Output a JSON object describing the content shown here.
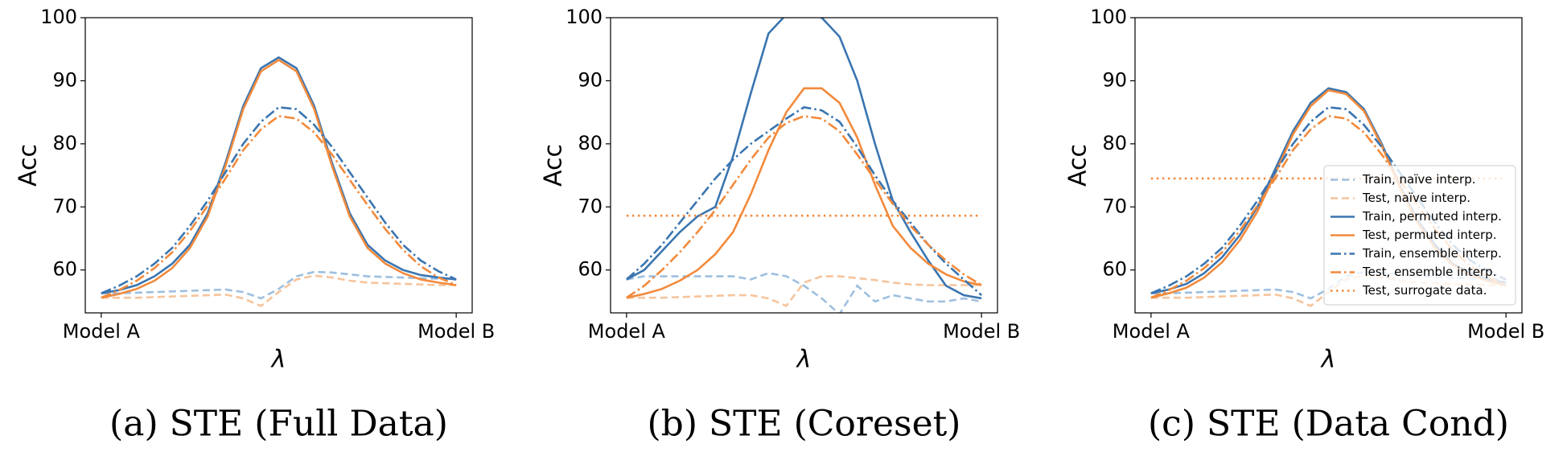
{
  "chart_data": [
    {
      "type": "line",
      "caption": "(a) STE (Full Data)",
      "xlabel": "λ",
      "ylabel": "Acc",
      "x": [
        0,
        0.05,
        0.1,
        0.15,
        0.2,
        0.25,
        0.3,
        0.35,
        0.4,
        0.45,
        0.5,
        0.55,
        0.6,
        0.65,
        0.7,
        0.75,
        0.8,
        0.85,
        0.9,
        0.95,
        1
      ],
      "xlim": [
        -0.045,
        1.045
      ],
      "xticks": [
        {
          "value": 0,
          "label": "Model A"
        },
        {
          "value": 1,
          "label": "Model B"
        }
      ],
      "ylim": [
        53.2,
        100
      ],
      "yticks": [
        60,
        70,
        80,
        90,
        100
      ],
      "series": [
        {
          "color": "#9dbfe0",
          "style": "dashed",
          "values": [
            56.3,
            56.3,
            56.4,
            56.5,
            56.6,
            56.7,
            56.8,
            56.9,
            56.5,
            55.5,
            57,
            59,
            59.7,
            59.6,
            59.3,
            59,
            58.9,
            58.8,
            58.7,
            58.6,
            58.5
          ]
        },
        {
          "color": "#f6c49c",
          "style": "dashed",
          "values": [
            55.6,
            55.6,
            55.6,
            55.7,
            55.8,
            55.9,
            56,
            56.1,
            55.5,
            54.3,
            56.5,
            58.5,
            59.1,
            58.8,
            58.3,
            58,
            57.9,
            57.8,
            57.7,
            57.6,
            57.6
          ]
        },
        {
          "color": "#3a75b0",
          "style": "solid",
          "values": [
            56.3,
            56.8,
            57.6,
            59,
            61,
            64,
            69,
            77,
            86,
            92,
            93.7,
            92,
            86,
            77,
            69,
            64,
            61.5,
            60,
            59.2,
            58.8,
            58.5
          ]
        },
        {
          "color": "#f28a3c",
          "style": "solid",
          "values": [
            55.6,
            56.2,
            57,
            58.3,
            60.3,
            63.5,
            68.5,
            76.5,
            85.5,
            91.5,
            93.3,
            91.5,
            85.5,
            76.5,
            68.5,
            63.5,
            61,
            59.5,
            58.5,
            58,
            57.6
          ]
        },
        {
          "color": "#3a75b0",
          "style": "dashdot",
          "values": [
            56.3,
            57.5,
            59,
            61,
            63.5,
            67,
            71,
            75.5,
            80,
            83.5,
            85.8,
            85.5,
            83,
            79.5,
            75.5,
            71.5,
            67.5,
            64,
            61.5,
            59.8,
            58.5
          ]
        },
        {
          "color": "#f28a3c",
          "style": "dashdot",
          "values": [
            55.6,
            56.8,
            58.3,
            60.3,
            62.8,
            66.2,
            70.2,
            74.5,
            79,
            82.3,
            84.4,
            84,
            81.8,
            78.3,
            74.3,
            70.3,
            66.5,
            63.2,
            60.6,
            58.8,
            57.6
          ]
        }
      ]
    },
    {
      "type": "line",
      "caption": "(b) STE (Coreset)",
      "xlabel": "λ",
      "ylabel": "Acc",
      "x": [
        0,
        0.05,
        0.1,
        0.15,
        0.2,
        0.25,
        0.3,
        0.35,
        0.4,
        0.45,
        0.5,
        0.55,
        0.6,
        0.65,
        0.7,
        0.75,
        0.8,
        0.85,
        0.9,
        0.95,
        1
      ],
      "xlim": [
        -0.045,
        1.045
      ],
      "xticks": [
        {
          "value": 0,
          "label": "Model A"
        },
        {
          "value": 1,
          "label": "Model B"
        }
      ],
      "ylim": [
        53.2,
        100
      ],
      "yticks": [
        60,
        70,
        80,
        90,
        100
      ],
      "series": [
        {
          "color": "#9dbfe0",
          "style": "dashed",
          "values": [
            58.5,
            59,
            59,
            59,
            59,
            59,
            59,
            58.5,
            59.5,
            59,
            57.5,
            55.5,
            53,
            57.5,
            55,
            56,
            55.5,
            55,
            55,
            55.5,
            55
          ]
        },
        {
          "color": "#f6c49c",
          "style": "dashed",
          "values": [
            55.6,
            55.6,
            55.6,
            55.7,
            55.8,
            55.9,
            56,
            56,
            55.5,
            54.3,
            58,
            59,
            59,
            58.7,
            58.4,
            58,
            57.7,
            57.6,
            57.6,
            57.6,
            57.6
          ]
        },
        {
          "color": "#3a75b0",
          "style": "solid",
          "values": [
            58.5,
            60,
            63,
            66,
            68.5,
            70,
            78,
            88,
            97.5,
            100.5,
            101,
            100,
            97,
            90,
            80,
            71,
            66,
            61.5,
            57.5,
            56,
            55.5
          ]
        },
        {
          "color": "#f28a3c",
          "style": "solid",
          "values": [
            55.6,
            56.2,
            57,
            58.3,
            60,
            62.5,
            66,
            72,
            79,
            85,
            88.8,
            88.8,
            86.5,
            81,
            73.5,
            67,
            63.5,
            61,
            59.3,
            58.2,
            57.6
          ]
        },
        {
          "color": "#3a75b0",
          "style": "dashdot",
          "values": [
            58.5,
            61,
            64,
            67.5,
            71,
            74.5,
            77.5,
            80,
            82,
            84,
            85.8,
            85.3,
            83.5,
            79.5,
            75,
            71,
            67.5,
            64,
            61,
            58.5,
            56
          ]
        },
        {
          "color": "#f28a3c",
          "style": "dashdot",
          "values": [
            55.6,
            57.5,
            60,
            62.8,
            66,
            69.5,
            73.5,
            77.5,
            81,
            83.3,
            84.4,
            84,
            82,
            78.3,
            74.3,
            70.5,
            67,
            64,
            61.5,
            59.3,
            57.6
          ]
        },
        {
          "color": "#f28a3c",
          "style": "dotted",
          "x": [
            0,
            1
          ],
          "values": [
            68.6,
            68.6
          ]
        }
      ]
    },
    {
      "type": "line",
      "caption": "(c) STE (Data Cond)",
      "xlabel": "λ",
      "ylabel": "Acc",
      "x": [
        0,
        0.05,
        0.1,
        0.15,
        0.2,
        0.25,
        0.3,
        0.35,
        0.4,
        0.45,
        0.5,
        0.55,
        0.6,
        0.65,
        0.7,
        0.75,
        0.8,
        0.85,
        0.9,
        0.95,
        1
      ],
      "xlim": [
        -0.045,
        1.045
      ],
      "xticks": [
        {
          "value": 0,
          "label": "Model A"
        },
        {
          "value": 1,
          "label": "Model B"
        }
      ],
      "ylim": [
        53.2,
        100
      ],
      "yticks": [
        60,
        70,
        80,
        90,
        100
      ],
      "legend": "lower right",
      "series": [
        {
          "name": "Train, naïve interp.",
          "color": "#9dbfe0",
          "style": "dashed",
          "values": [
            56.3,
            56.3,
            56.4,
            56.5,
            56.6,
            56.7,
            56.8,
            56.9,
            56.5,
            55.5,
            57,
            59,
            59.7,
            59.6,
            59.3,
            59,
            58.9,
            58.8,
            58.7,
            58.6,
            58.5
          ]
        },
        {
          "name": "Test, naïve interp.",
          "color": "#f6c49c",
          "style": "dashed",
          "values": [
            55.6,
            55.6,
            55.6,
            55.7,
            55.8,
            55.9,
            56,
            56.1,
            55.5,
            54.3,
            56.5,
            58.5,
            59.1,
            58.8,
            58.3,
            58,
            57.9,
            57.8,
            57.7,
            57.6,
            57.6
          ]
        },
        {
          "name": "Train, permuted interp.",
          "color": "#3a75b0",
          "style": "solid",
          "values": [
            56.3,
            56.9,
            57.8,
            59.5,
            62,
            65.5,
            70,
            76,
            82,
            86.5,
            88.8,
            88.2,
            85.5,
            80,
            73.5,
            68,
            64,
            61,
            59.5,
            58.5,
            58
          ]
        },
        {
          "name": "Test, permuted interp.",
          "color": "#f28a3c",
          "style": "solid",
          "values": [
            55.6,
            56.3,
            57.2,
            58.8,
            61.2,
            64.7,
            69.3,
            75.3,
            81.5,
            86,
            88.5,
            87.9,
            85.2,
            79.7,
            73.2,
            67.6,
            63.5,
            60.8,
            59.2,
            58.2,
            57.6
          ]
        },
        {
          "name": "Train, ensemble interp.",
          "color": "#3a75b0",
          "style": "dashdot",
          "values": [
            56.3,
            57.5,
            59,
            61,
            63.5,
            67,
            71,
            75.5,
            80,
            83.5,
            85.8,
            85.5,
            83,
            79.5,
            75.5,
            71.5,
            67.5,
            64,
            61.5,
            59.8,
            58.5
          ]
        },
        {
          "name": "Test, ensemble interp.",
          "color": "#f28a3c",
          "style": "dashdot",
          "values": [
            55.6,
            56.8,
            58.3,
            60.3,
            62.8,
            66.2,
            70.2,
            74.5,
            79,
            82.3,
            84.4,
            84,
            81.8,
            78.3,
            74.3,
            70.3,
            66.5,
            63.2,
            60.6,
            58.8,
            57.6
          ]
        },
        {
          "name": "Test, surrogate data.",
          "color": "#f28a3c",
          "style": "dotted",
          "x": [
            0,
            1
          ],
          "values": [
            74.5,
            74.5
          ]
        }
      ]
    }
  ]
}
